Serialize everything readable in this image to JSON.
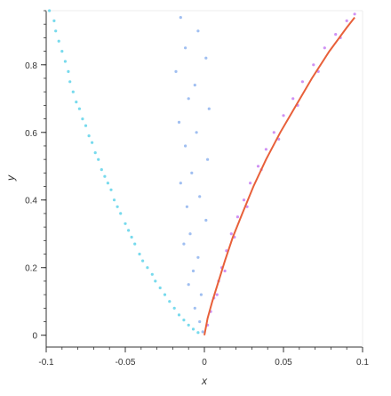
{
  "chart_data": {
    "type": "scatter",
    "title": "",
    "xlabel": "x",
    "ylabel": "y",
    "xlim": [
      -0.1,
      0.1
    ],
    "ylim": [
      -0.035,
      0.96
    ],
    "grid": false,
    "legend": "none",
    "x_ticks": [
      {
        "value": -0.1,
        "label": "-0.1"
      },
      {
        "value": -0.05,
        "label": "-0.05"
      },
      {
        "value": 0,
        "label": "0"
      },
      {
        "value": 0.05,
        "label": "0.05"
      },
      {
        "value": 0.1,
        "label": "0.1"
      }
    ],
    "y_ticks": [
      {
        "value": 0,
        "label": "0"
      },
      {
        "value": 0.2,
        "label": "0.2"
      },
      {
        "value": 0.4,
        "label": "0.4"
      },
      {
        "value": 0.6,
        "label": "0.6"
      },
      {
        "value": 0.8,
        "label": "0.8"
      }
    ],
    "series": [
      {
        "kind": "scatter",
        "color": "#5fd3ea",
        "points": [
          [
            -0.098,
            0.96
          ],
          [
            -0.095,
            0.93
          ],
          [
            -0.094,
            0.9
          ],
          [
            -0.092,
            0.87
          ],
          [
            -0.09,
            0.84
          ],
          [
            -0.088,
            0.81
          ],
          [
            -0.086,
            0.78
          ],
          [
            -0.085,
            0.75
          ],
          [
            -0.083,
            0.72
          ],
          [
            -0.081,
            0.69
          ],
          [
            -0.079,
            0.67
          ],
          [
            -0.077,
            0.64
          ],
          [
            -0.075,
            0.62
          ],
          [
            -0.073,
            0.59
          ],
          [
            -0.071,
            0.57
          ],
          [
            -0.069,
            0.54
          ],
          [
            -0.067,
            0.52
          ],
          [
            -0.065,
            0.49
          ],
          [
            -0.063,
            0.47
          ],
          [
            -0.061,
            0.45
          ],
          [
            -0.059,
            0.43
          ],
          [
            -0.057,
            0.4
          ],
          [
            -0.055,
            0.38
          ],
          [
            -0.053,
            0.36
          ],
          [
            -0.05,
            0.33
          ],
          [
            -0.048,
            0.31
          ],
          [
            -0.046,
            0.29
          ],
          [
            -0.044,
            0.27
          ],
          [
            -0.041,
            0.24
          ],
          [
            -0.039,
            0.22
          ],
          [
            -0.036,
            0.2
          ],
          [
            -0.033,
            0.18
          ],
          [
            -0.031,
            0.16
          ],
          [
            -0.028,
            0.14
          ],
          [
            -0.025,
            0.12
          ],
          [
            -0.022,
            0.1
          ],
          [
            -0.019,
            0.08
          ],
          [
            -0.016,
            0.06
          ],
          [
            -0.013,
            0.045
          ],
          [
            -0.01,
            0.03
          ],
          [
            -0.007,
            0.018
          ],
          [
            -0.004,
            0.008
          ]
        ]
      },
      {
        "kind": "scatter",
        "color": "#8fb4ee",
        "points": [
          [
            -0.015,
            0.94
          ],
          [
            -0.004,
            0.9
          ],
          [
            -0.012,
            0.85
          ],
          [
            0.001,
            0.82
          ],
          [
            -0.018,
            0.78
          ],
          [
            -0.006,
            0.74
          ],
          [
            -0.01,
            0.7
          ],
          [
            0.003,
            0.67
          ],
          [
            -0.016,
            0.63
          ],
          [
            -0.005,
            0.6
          ],
          [
            -0.012,
            0.56
          ],
          [
            0.002,
            0.52
          ],
          [
            -0.008,
            0.48
          ],
          [
            -0.015,
            0.45
          ],
          [
            -0.003,
            0.41
          ],
          [
            -0.011,
            0.38
          ],
          [
            0.001,
            0.34
          ],
          [
            -0.009,
            0.3
          ],
          [
            -0.013,
            0.27
          ],
          [
            -0.004,
            0.23
          ],
          [
            -0.007,
            0.19
          ],
          [
            -0.01,
            0.15
          ],
          [
            -0.002,
            0.12
          ],
          [
            -0.006,
            0.08
          ],
          [
            -0.003,
            0.04
          ],
          [
            -0.001,
            0.01
          ]
        ]
      },
      {
        "kind": "scatter",
        "color": "#c77ff2",
        "points": [
          [
            0.002,
            0.03
          ],
          [
            0.004,
            0.07
          ],
          [
            0.006,
            0.11
          ],
          [
            0.009,
            0.16
          ],
          [
            0.011,
            0.2
          ],
          [
            0.014,
            0.25
          ],
          [
            0.017,
            0.3
          ],
          [
            0.021,
            0.35
          ],
          [
            0.025,
            0.4
          ],
          [
            0.029,
            0.45
          ],
          [
            0.034,
            0.5
          ],
          [
            0.039,
            0.55
          ],
          [
            0.044,
            0.6
          ],
          [
            0.05,
            0.65
          ],
          [
            0.056,
            0.7
          ],
          [
            0.062,
            0.75
          ],
          [
            0.069,
            0.8
          ],
          [
            0.076,
            0.85
          ],
          [
            0.083,
            0.89
          ],
          [
            0.09,
            0.93
          ],
          [
            0.095,
            0.95
          ],
          [
            0.008,
            0.12
          ],
          [
            0.013,
            0.19
          ],
          [
            0.019,
            0.29
          ],
          [
            0.027,
            0.38
          ],
          [
            0.036,
            0.49
          ],
          [
            0.047,
            0.58
          ],
          [
            0.059,
            0.68
          ],
          [
            0.072,
            0.78
          ],
          [
            0.086,
            0.88
          ]
        ]
      },
      {
        "kind": "line",
        "color": "#e8603a",
        "points": [
          [
            0.0,
            0.0
          ],
          [
            0.002,
            0.05
          ],
          [
            0.005,
            0.1
          ],
          [
            0.009,
            0.16
          ],
          [
            0.013,
            0.22
          ],
          [
            0.018,
            0.29
          ],
          [
            0.024,
            0.36
          ],
          [
            0.031,
            0.44
          ],
          [
            0.039,
            0.52
          ],
          [
            0.048,
            0.6
          ],
          [
            0.058,
            0.68
          ],
          [
            0.068,
            0.76
          ],
          [
            0.079,
            0.84
          ],
          [
            0.09,
            0.91
          ],
          [
            0.095,
            0.94
          ]
        ]
      }
    ]
  }
}
